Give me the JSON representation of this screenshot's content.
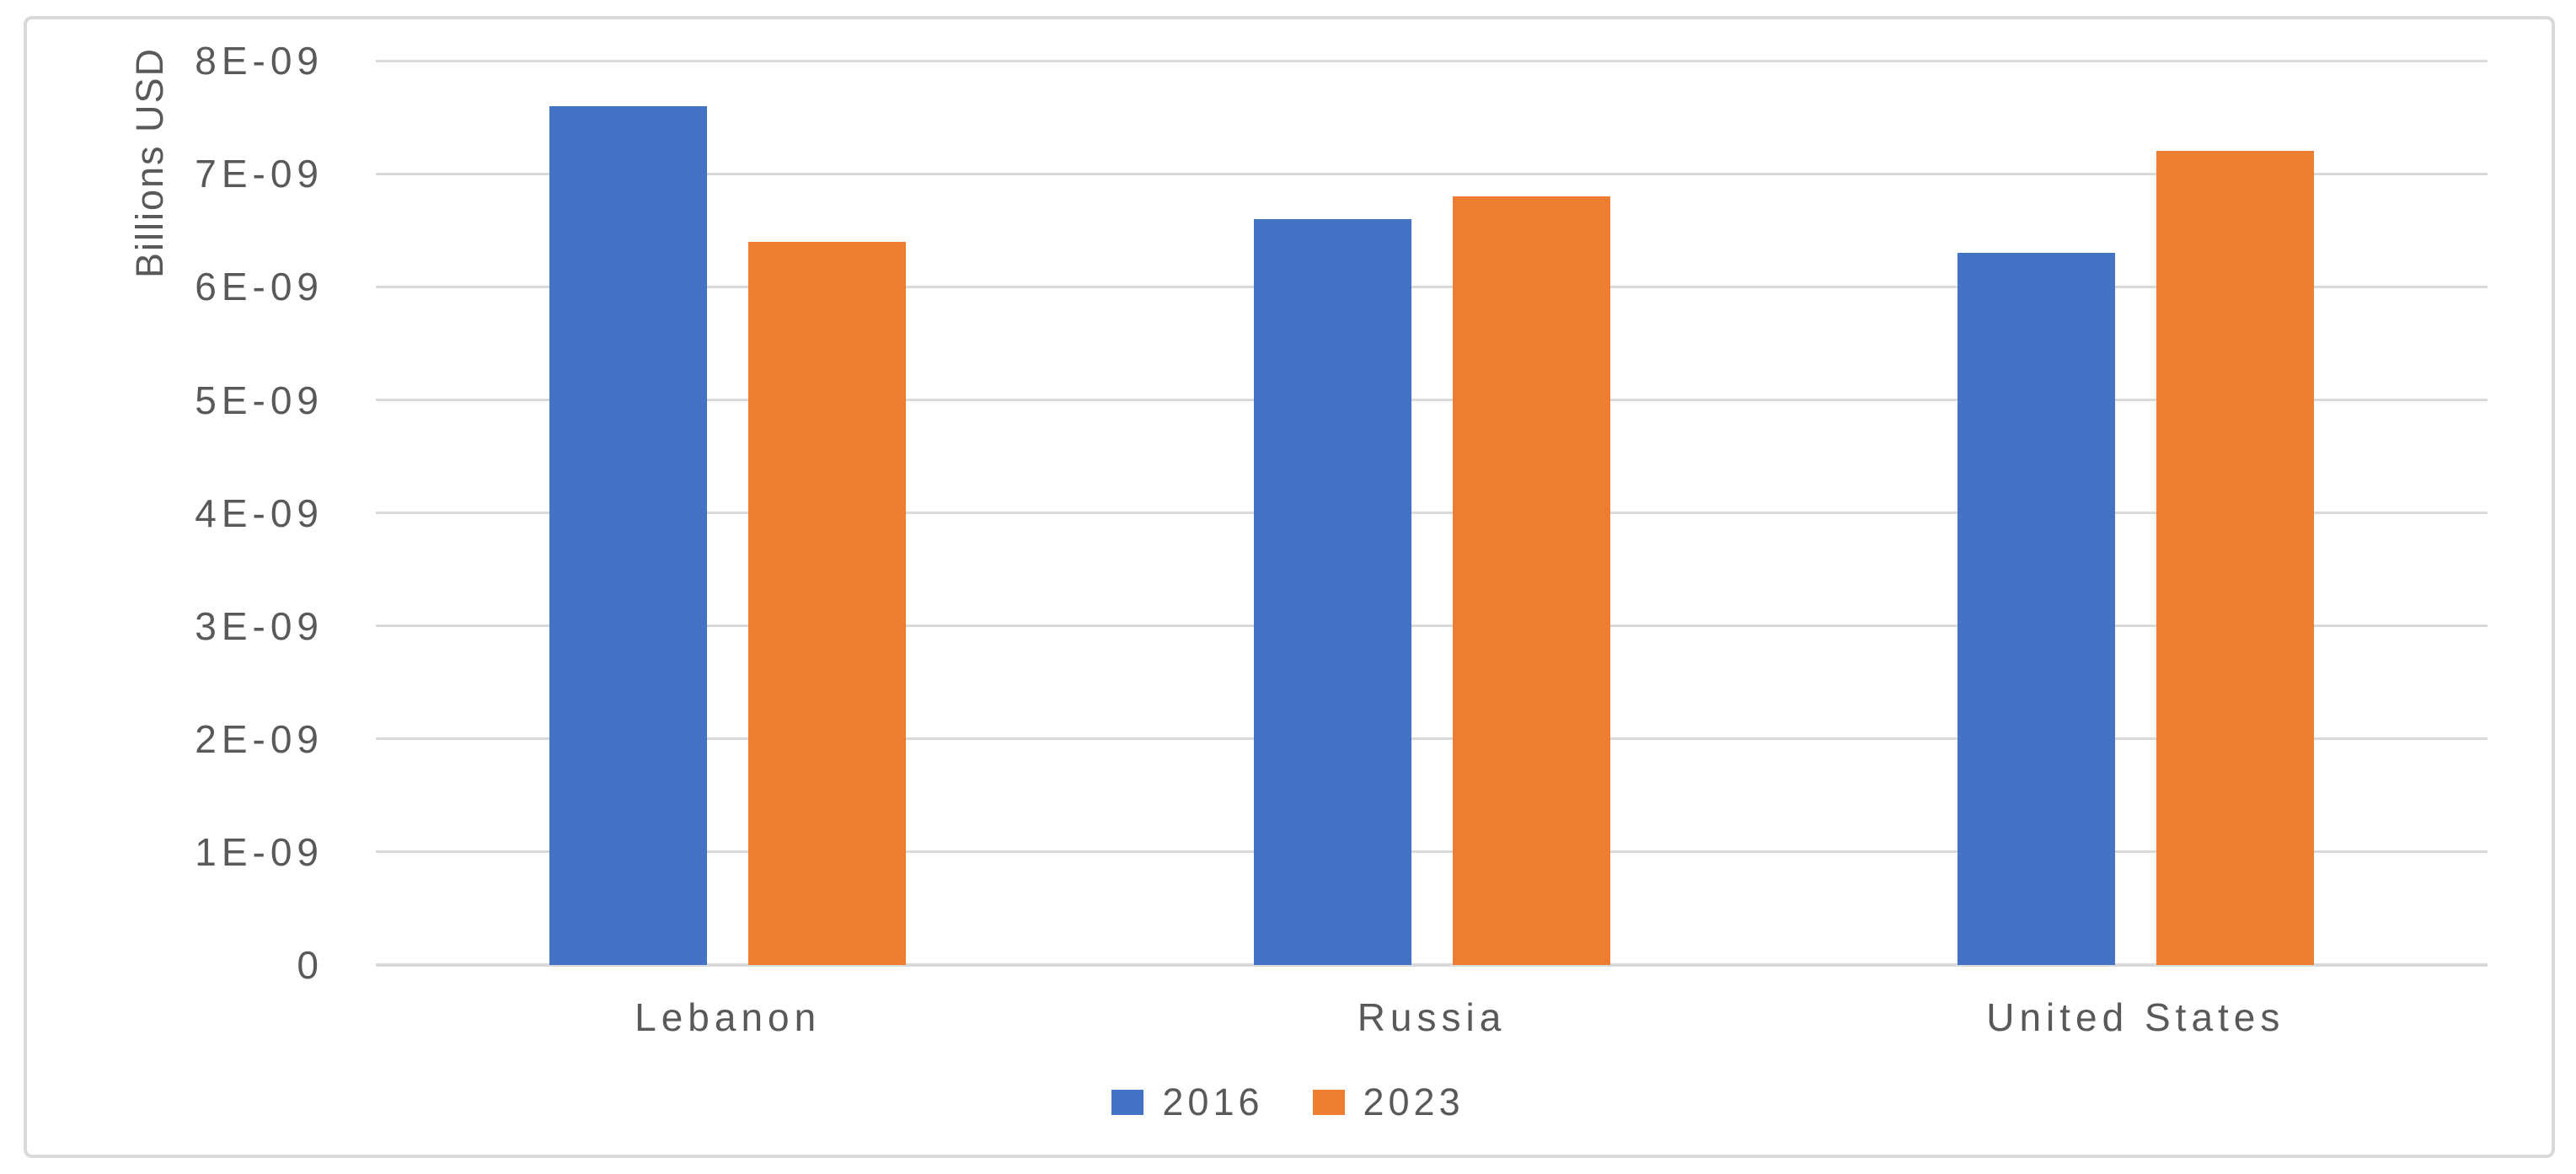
{
  "chart_data": {
    "type": "bar",
    "title": "",
    "xlabel": "",
    "ylabel": "Billions USD",
    "categories": [
      "Lebanon",
      "Russia",
      "United States"
    ],
    "series": [
      {
        "name": "2016",
        "color": "#4472C4",
        "values": [
          7.6e-09,
          6.6e-09,
          6.3e-09
        ]
      },
      {
        "name": "2023",
        "color": "#ED7D31",
        "values": [
          6.4e-09,
          6.8e-09,
          7.2e-09
        ]
      }
    ],
    "ylim": [
      0,
      8e-09
    ],
    "ytick_step": 1e-09,
    "ytick_labels": [
      "0",
      "1E-09",
      "2E-09",
      "3E-09",
      "4E-09",
      "5E-09",
      "6E-09",
      "7E-09",
      "8E-09"
    ],
    "grid": true,
    "legend_position": "bottom-center",
    "style": {
      "background": "#FFFFFF",
      "frame_border_color": "#D9D9D9",
      "gridline_color": "#D9D9D9",
      "text_color": "#595959",
      "series_2016_color": "#4472C4",
      "series_2023_color": "#ED7D31"
    }
  }
}
